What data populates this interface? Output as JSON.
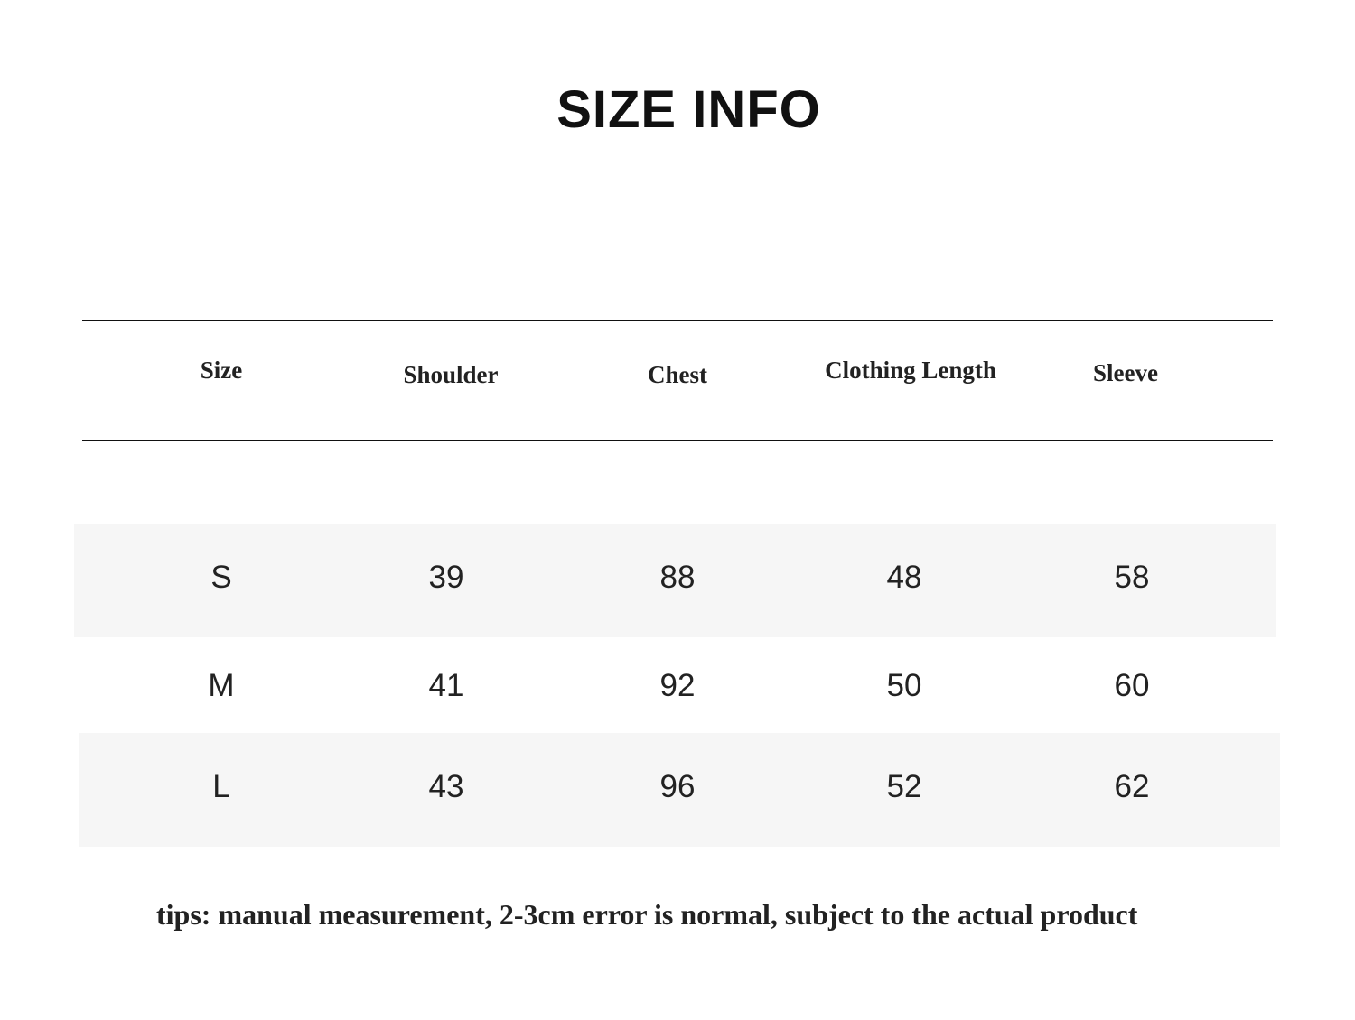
{
  "title": "SIZE INFO",
  "headers": [
    "Size",
    "Shoulder",
    "Chest",
    "Clothing Length",
    "Sleeve"
  ],
  "rows": [
    [
      "S",
      "39",
      "88",
      "48",
      "58"
    ],
    [
      "M",
      "41",
      "92",
      "50",
      "60"
    ],
    [
      "L",
      "43",
      "96",
      "52",
      "62"
    ]
  ],
  "tips": "tips: manual measurement, 2-3cm error is normal, subject to the actual product",
  "colors": {
    "stripe": "#f6f6f6",
    "text": "#222222"
  }
}
